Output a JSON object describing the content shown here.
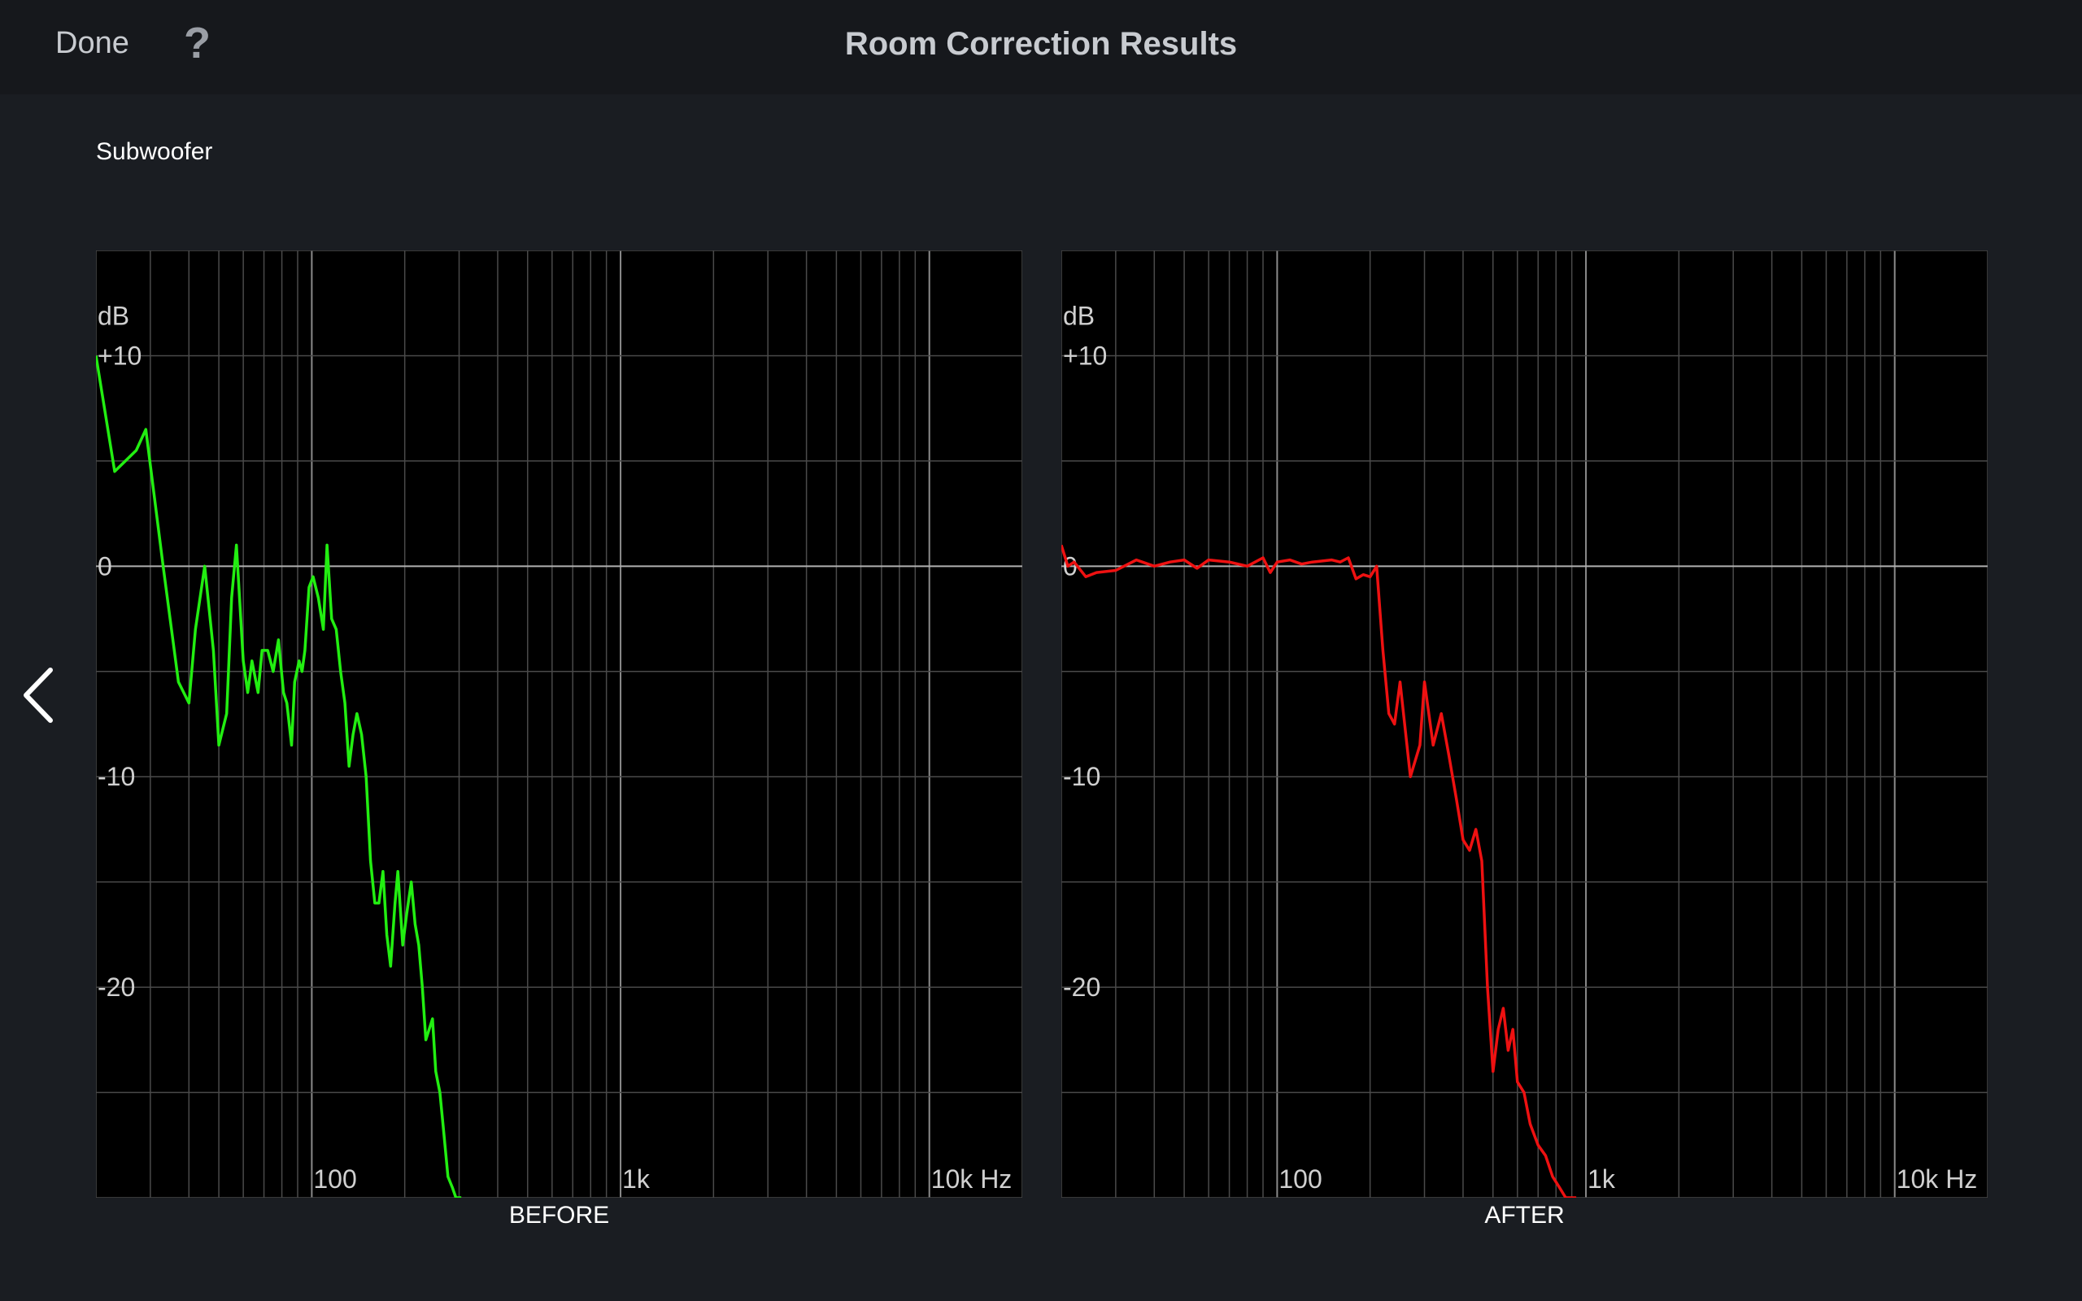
{
  "header": {
    "done_label": "Done",
    "help_label": "?",
    "title": "Room Correction Results"
  },
  "section": {
    "label": "Subwoofer"
  },
  "colors": {
    "background": "#1a1d22",
    "plot_bg": "#000000",
    "grid": "#4a4a4a",
    "before": "#22ee11",
    "after": "#ee1111"
  },
  "icons": {
    "prev": "chevron-left-icon"
  },
  "chart_data": [
    {
      "type": "line",
      "caption": "BEFORE",
      "xscale": "log",
      "xlim": [
        20,
        20000
      ],
      "ylim": [
        -30,
        15
      ],
      "y_unit_label": "dB",
      "yticks": [
        {
          "value": 10,
          "label": "+10"
        },
        {
          "value": 0,
          "label": "0"
        },
        {
          "value": -10,
          "label": "-10"
        },
        {
          "value": -20,
          "label": "-20"
        }
      ],
      "xticks": [
        {
          "value": 100,
          "label": "100"
        },
        {
          "value": 1000,
          "label": "1k"
        },
        {
          "value": 10000,
          "label": "10k Hz"
        }
      ],
      "series": [
        {
          "color": "#22ee11",
          "x": [
            20,
            23,
            27,
            29,
            33,
            37,
            40,
            42,
            45,
            48,
            50,
            53,
            55,
            57,
            60,
            62,
            64,
            67,
            69,
            72,
            75,
            78,
            81,
            83,
            86,
            88,
            91,
            93,
            95,
            98,
            101,
            105,
            109,
            112,
            116,
            120,
            124,
            128,
            132,
            136,
            140,
            145,
            150,
            155,
            160,
            165,
            170,
            175,
            180,
            186,
            190,
            197,
            203,
            210,
            216,
            222,
            228,
            234,
            240,
            246,
            252,
            260,
            268,
            276,
            285,
            293,
            305
          ],
          "y": [
            10,
            4.5,
            5.5,
            6.5,
            0,
            -5.5,
            -6.5,
            -3,
            0,
            -4,
            -8.5,
            -7,
            -1.5,
            1,
            -4.5,
            -6,
            -4.5,
            -6,
            -4,
            -4,
            -5,
            -3.5,
            -6,
            -6.5,
            -8.5,
            -5.5,
            -4.5,
            -5,
            -4,
            -1,
            -0.5,
            -1.5,
            -3,
            1,
            -2.5,
            -3,
            -5,
            -6.5,
            -9.5,
            -8,
            -7,
            -8,
            -10,
            -14,
            -16,
            -16,
            -14.5,
            -17.5,
            -19,
            -16,
            -14.5,
            -18,
            -16.5,
            -15,
            -17,
            -18,
            -20,
            -22.5,
            -22,
            -21.5,
            -24,
            -25,
            -27,
            -29,
            -29.5,
            -30,
            -30
          ]
        }
      ]
    },
    {
      "type": "line",
      "caption": "AFTER",
      "xscale": "log",
      "xlim": [
        20,
        20000
      ],
      "ylim": [
        -30,
        15
      ],
      "y_unit_label": "dB",
      "yticks": [
        {
          "value": 10,
          "label": "+10"
        },
        {
          "value": 0,
          "label": "0"
        },
        {
          "value": -10,
          "label": "-10"
        },
        {
          "value": -20,
          "label": "-20"
        }
      ],
      "xticks": [
        {
          "value": 100,
          "label": "100"
        },
        {
          "value": 1000,
          "label": "1k"
        },
        {
          "value": 10000,
          "label": "10k Hz"
        }
      ],
      "series": [
        {
          "color": "#ee1111",
          "x": [
            20,
            21,
            22,
            24,
            26,
            30,
            35,
            40,
            45,
            50,
            55,
            60,
            70,
            80,
            90,
            95,
            100,
            110,
            120,
            130,
            150,
            160,
            170,
            180,
            190,
            200,
            210,
            220,
            230,
            240,
            250,
            270,
            290,
            300,
            320,
            340,
            360,
            380,
            400,
            420,
            440,
            460,
            480,
            500,
            520,
            540,
            560,
            580,
            600,
            630,
            660,
            700,
            740,
            780,
            820,
            860,
            900,
            930
          ],
          "y": [
            1,
            0,
            0.2,
            -0.5,
            -0.3,
            -0.2,
            0.3,
            0,
            0.2,
            0.3,
            -0.1,
            0.3,
            0.2,
            0,
            0.4,
            -0.3,
            0.2,
            0.3,
            0.1,
            0.2,
            0.3,
            0.2,
            0.4,
            -0.6,
            -0.4,
            -0.5,
            0,
            -4,
            -7,
            -7.5,
            -5.5,
            -10,
            -8.5,
            -5.5,
            -8.5,
            -7,
            -9,
            -11,
            -13,
            -13.5,
            -12.5,
            -14,
            -20,
            -24,
            -22,
            -21,
            -23,
            -22,
            -24.5,
            -25,
            -26.5,
            -27.5,
            -28,
            -29,
            -29.5,
            -30,
            -30,
            -30
          ]
        }
      ]
    }
  ]
}
